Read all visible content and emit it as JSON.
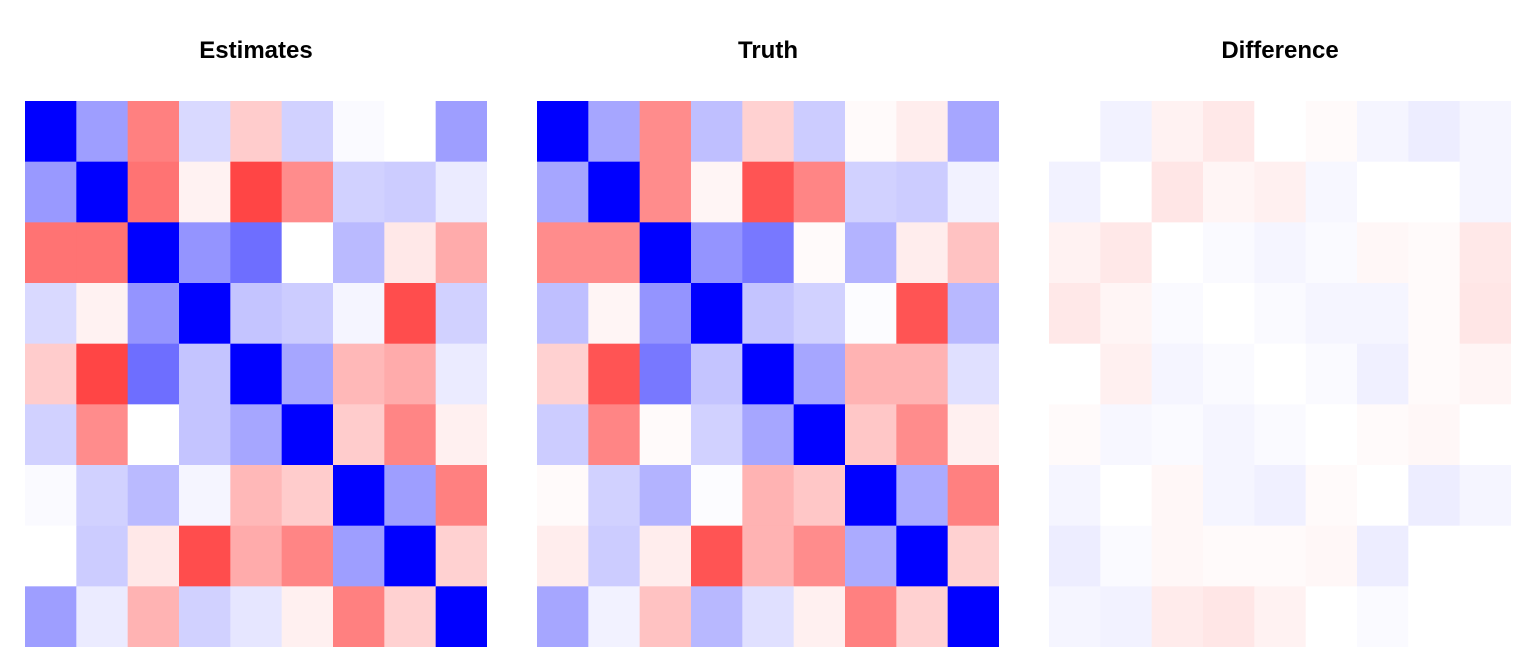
{
  "chart_data": [
    {
      "type": "heatmap",
      "title": "Estimates",
      "colorscale": {
        "low": "#0000ff",
        "mid": "#ffffff",
        "high": "#ff0000",
        "range": [
          -1,
          1
        ]
      },
      "values": [
        [
          -1.0,
          -0.38,
          0.5,
          -0.15,
          0.2,
          -0.18,
          -0.02,
          0.0,
          -0.38
        ],
        [
          -0.4,
          -1.0,
          0.55,
          0.05,
          0.73,
          0.45,
          -0.18,
          -0.2,
          -0.08
        ],
        [
          0.55,
          0.55,
          -1.0,
          -0.42,
          -0.57,
          0.0,
          -0.27,
          0.09,
          0.33
        ],
        [
          -0.15,
          0.05,
          -0.42,
          -1.0,
          -0.23,
          -0.2,
          -0.04,
          0.7,
          -0.18
        ],
        [
          0.2,
          0.73,
          -0.57,
          -0.23,
          -1.0,
          -0.35,
          0.28,
          0.33,
          -0.08
        ],
        [
          -0.18,
          0.45,
          0.0,
          -0.23,
          -0.35,
          -1.0,
          0.2,
          0.48,
          0.06
        ],
        [
          -0.02,
          -0.18,
          -0.27,
          -0.04,
          0.28,
          0.2,
          -1.0,
          -0.38,
          0.5
        ],
        [
          0.0,
          -0.2,
          0.09,
          0.7,
          0.33,
          0.48,
          -0.38,
          -1.0,
          0.18
        ],
        [
          -0.38,
          -0.08,
          0.3,
          -0.18,
          -0.1,
          0.06,
          0.5,
          0.18,
          -1.0
        ]
      ]
    },
    {
      "type": "heatmap",
      "title": "Truth",
      "colorscale": {
        "low": "#0000ff",
        "mid": "#ffffff",
        "high": "#ff0000",
        "range": [
          -1,
          1
        ]
      },
      "values": [
        [
          -1.0,
          -0.35,
          0.45,
          -0.25,
          0.18,
          -0.2,
          0.02,
          0.07,
          -0.35
        ],
        [
          -0.35,
          -1.0,
          0.45,
          0.04,
          0.67,
          0.48,
          -0.18,
          -0.2,
          -0.05
        ],
        [
          0.45,
          0.45,
          -1.0,
          -0.42,
          -0.53,
          0.02,
          -0.3,
          0.07,
          0.24
        ],
        [
          -0.25,
          0.04,
          -0.42,
          -1.0,
          -0.23,
          -0.18,
          -0.01,
          0.67,
          -0.28
        ],
        [
          0.18,
          0.67,
          -0.53,
          -0.23,
          -1.0,
          -0.35,
          0.3,
          0.3,
          -0.12
        ],
        [
          -0.2,
          0.48,
          0.02,
          -0.18,
          -0.35,
          -1.0,
          0.22,
          0.45,
          0.06
        ],
        [
          0.02,
          -0.18,
          -0.3,
          -0.01,
          0.3,
          0.22,
          -1.0,
          -0.33,
          0.5
        ],
        [
          0.07,
          -0.2,
          0.07,
          0.67,
          0.3,
          0.45,
          -0.33,
          -1.0,
          0.18
        ],
        [
          -0.35,
          -0.05,
          0.24,
          -0.28,
          -0.12,
          0.06,
          0.5,
          0.18,
          -1.0
        ]
      ]
    },
    {
      "type": "heatmap",
      "title": "Difference",
      "colorscale": {
        "low": "#0000ff",
        "mid": "#ffffff",
        "high": "#ff0000",
        "range": [
          -1,
          1
        ]
      },
      "values": [
        [
          0.0,
          -0.05,
          0.05,
          0.09,
          0.0,
          0.02,
          -0.04,
          -0.07,
          -0.04
        ],
        [
          -0.05,
          0.0,
          0.1,
          0.04,
          0.06,
          -0.03,
          0.0,
          0.0,
          -0.04
        ],
        [
          0.05,
          0.09,
          0.0,
          -0.02,
          -0.04,
          -0.02,
          0.03,
          0.02,
          0.09
        ],
        [
          0.09,
          0.04,
          -0.02,
          0.0,
          -0.02,
          -0.04,
          -0.04,
          0.02,
          0.1
        ],
        [
          0.0,
          0.06,
          -0.04,
          -0.02,
          0.0,
          -0.02,
          -0.06,
          0.02,
          0.04
        ],
        [
          0.02,
          -0.03,
          -0.02,
          -0.04,
          -0.02,
          0.0,
          0.02,
          0.03,
          0.0
        ],
        [
          -0.04,
          0.0,
          0.03,
          -0.04,
          -0.06,
          0.02,
          0.0,
          -0.07,
          -0.04
        ],
        [
          -0.07,
          -0.02,
          0.03,
          0.02,
          0.02,
          0.03,
          -0.07,
          0.0,
          0.0
        ],
        [
          -0.04,
          -0.05,
          0.08,
          0.1,
          0.05,
          0.0,
          -0.02,
          0.0,
          0.0
        ]
      ]
    }
  ]
}
